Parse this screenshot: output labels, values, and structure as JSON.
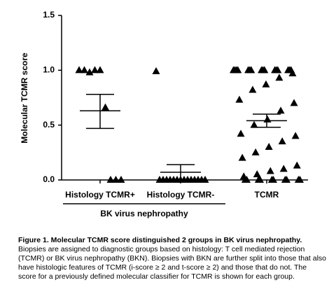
{
  "chart_data": {
    "type": "dot",
    "y_label": "Molecular TCMR score",
    "categories": [
      "Histology TCMR+",
      "Histology TCMR-",
      "TCMR"
    ],
    "group_label": "BK virus nephropathy",
    "points": [
      [
        1,
        1,
        0.98,
        1,
        1,
        0.66,
        0,
        0,
        0
      ],
      [
        0.99,
        0,
        0,
        0,
        0,
        0,
        0,
        0,
        0,
        0,
        0,
        0,
        0,
        0,
        0
      ],
      [
        1,
        1,
        1,
        1,
        1,
        1,
        1,
        1,
        1,
        1,
        1,
        1,
        1,
        1,
        1,
        1,
        0.97,
        0.93,
        0.87,
        0.82,
        0.73,
        0.7,
        0.63,
        0.55,
        0.5,
        0.42,
        0.4,
        0.35,
        0.3,
        0.25,
        0.2,
        0.13,
        0.1,
        0.08,
        0.05,
        0.03,
        0,
        0,
        0,
        0,
        0,
        0,
        0,
        0,
        0,
        0
      ]
    ],
    "means": [
      0.63,
      0.07,
      0.54
    ],
    "error_upper": [
      0.78,
      0.14,
      0.6
    ],
    "error_lower": [
      0.47,
      0,
      0.48
    ],
    "color": "#000000",
    "ylim": [
      0,
      1.5
    ],
    "yticks": [
      {
        "value": 0,
        "label": "0.0"
      },
      0.5,
      {
        "value": 1,
        "label": "1.0"
      },
      1.5
    ]
  },
  "caption": {
    "title": "Figure 1.  Molecular TCMR score distinguished 2 groups in BK virus nephropathy.",
    "body": "Biopsies are assigned to diagnostic groups based on histology: T cell mediated rejection (TCMR) or BK virus nephropathy (BKN).  Biopsies with BKN are further split into those that also have histologic features of TCMR (i-score ≥ 2 and t-score ≥ 2) and those that do not. The score for a previously defined molecular classifier for TCMR is shown for each group."
  }
}
